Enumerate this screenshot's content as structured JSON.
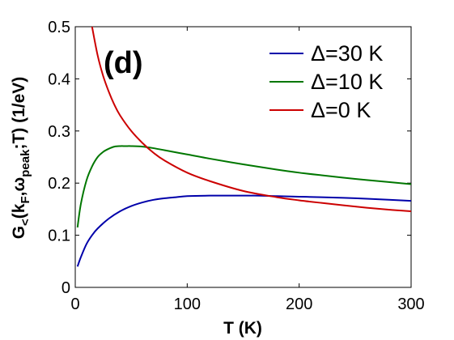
{
  "chart_data": {
    "type": "line",
    "panel_label": "(d)",
    "xlabel": "T (K)",
    "ylabel": {
      "prefix": "G",
      "sub1": "<",
      "mid1": "(k",
      "sub2": "F",
      "mid2": ",ω",
      "sub3": "peak",
      "suffix": ";T) (1/eV)"
    },
    "xlim": [
      0,
      300
    ],
    "ylim": [
      0,
      0.5
    ],
    "xticks": [
      0,
      100,
      200,
      300
    ],
    "yticks": [
      0,
      0.1,
      0.2,
      0.3,
      0.4,
      0.5
    ],
    "xtick_labels": [
      "0",
      "100",
      "200",
      "300"
    ],
    "ytick_labels": [
      "0",
      "0.1",
      "0.2",
      "0.3",
      "0.4",
      "0.5"
    ],
    "grid": false,
    "legend_position": "top-right",
    "series": [
      {
        "name": "Δ=30 K",
        "color": "#0000aa",
        "x": [
          2,
          5,
          10,
          15,
          20,
          30,
          40,
          50,
          60,
          70,
          80,
          90,
          100,
          120,
          140,
          160,
          180,
          200,
          220,
          250,
          280,
          300
        ],
        "y": [
          0.04,
          0.058,
          0.083,
          0.1,
          0.113,
          0.132,
          0.146,
          0.156,
          0.163,
          0.168,
          0.171,
          0.173,
          0.175,
          0.176,
          0.176,
          0.176,
          0.175,
          0.174,
          0.173,
          0.171,
          0.168,
          0.166
        ]
      },
      {
        "name": "Δ=10 K",
        "color": "#007700",
        "x": [
          2,
          5,
          10,
          15,
          20,
          25,
          30,
          35,
          40,
          45,
          50,
          60,
          70,
          80,
          100,
          120,
          150,
          180,
          200,
          220,
          250,
          280,
          300
        ],
        "y": [
          0.115,
          0.16,
          0.205,
          0.232,
          0.25,
          0.26,
          0.266,
          0.27,
          0.271,
          0.271,
          0.271,
          0.27,
          0.267,
          0.263,
          0.255,
          0.247,
          0.236,
          0.226,
          0.22,
          0.215,
          0.208,
          0.202,
          0.198
        ]
      },
      {
        "name": "Δ=0 K",
        "color": "#cc0000",
        "x": [
          15,
          20,
          25,
          30,
          35,
          40,
          50,
          60,
          70,
          80,
          100,
          120,
          150,
          180,
          200,
          220,
          250,
          280,
          300
        ],
        "y": [
          0.5,
          0.445,
          0.405,
          0.375,
          0.35,
          0.33,
          0.3,
          0.277,
          0.258,
          0.243,
          0.22,
          0.204,
          0.185,
          0.173,
          0.167,
          0.162,
          0.155,
          0.149,
          0.146
        ]
      }
    ]
  }
}
